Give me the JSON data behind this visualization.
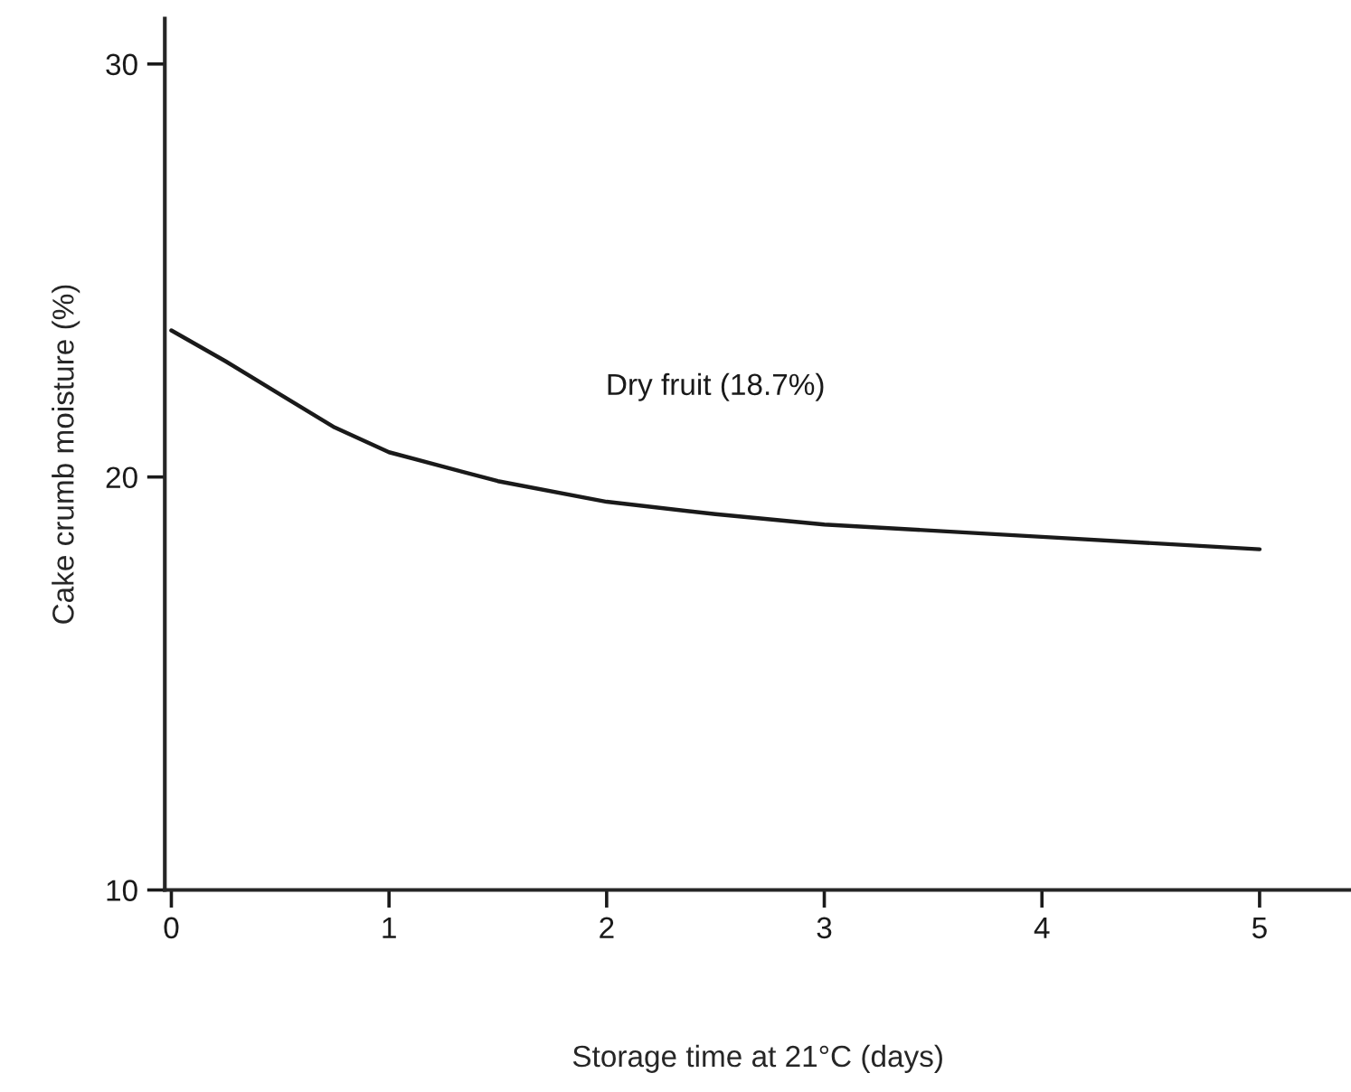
{
  "chart_data": {
    "type": "line",
    "xlabel": "Storage time at 21°C (days)",
    "ylabel": "Cake crumb moisture (%)",
    "x": [
      0,
      0.25,
      0.5,
      0.75,
      1,
      1.5,
      2,
      2.5,
      3,
      4,
      5
    ],
    "series": [
      {
        "name": "Dry fruit (18.7%)",
        "color": "#1a1a1a",
        "values": [
          23.55,
          22.8,
          22.0,
          21.2,
          20.6,
          19.9,
          19.4,
          19.1,
          18.85,
          18.55,
          18.25
        ]
      }
    ],
    "xlim": [
      -0.03,
      5.42
    ],
    "ylim": [
      10,
      31.1
    ],
    "xticks": [
      0,
      1,
      2,
      3,
      4,
      5
    ],
    "yticks": [
      10,
      20,
      30
    ],
    "grid": false,
    "legend": false,
    "marker": "none",
    "line_style": "solid"
  }
}
